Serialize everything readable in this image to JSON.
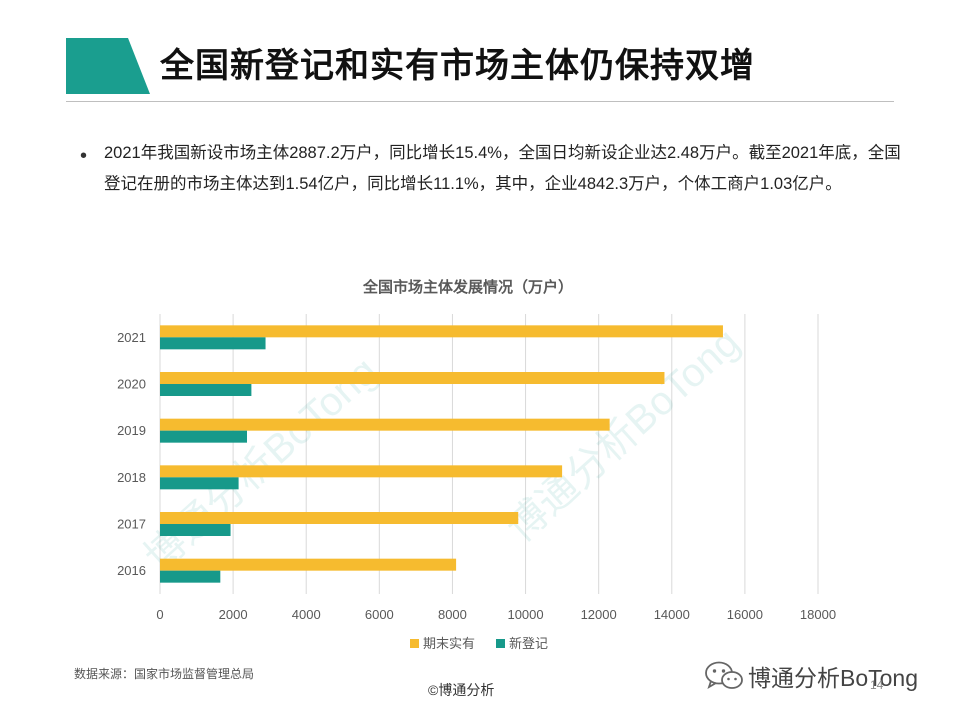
{
  "page": {
    "title": "全国新登记和实有市场主体仍保持双增",
    "bullet_marker": "•",
    "summary": "2021年我国新设市场主体2887.2万户，同比增长15.4%，全国日均新设企业达2.48万户。截至2021年底，全国登记在册的市场主体达到1.54亿户，同比增长11.1%，其中，企业4842.3万户，个体工商户1.03亿户。",
    "source": "数据来源：国家市场监督管理总局",
    "copyright": "©博通分析",
    "brand": "博通分析BoTong",
    "page_number": "14",
    "watermark": "博通分析BoTong"
  },
  "colors": {
    "accent_teal": "#1a9e8f",
    "bar_existing": "#f6bb2f",
    "bar_new": "#17998a",
    "grid": "#d9d9d9"
  },
  "chart_data": {
    "type": "bar",
    "orientation": "horizontal",
    "title": "全国市场主体发展情况（万户）",
    "categories": [
      "2021",
      "2020",
      "2019",
      "2018",
      "2017",
      "2016"
    ],
    "series": [
      {
        "name": "期末实有",
        "values": [
          15400,
          13800,
          12300,
          11000,
          9800,
          8100
        ]
      },
      {
        "name": "新登记",
        "values": [
          2887,
          2500,
          2380,
          2150,
          1930,
          1650
        ]
      }
    ],
    "xticks": [
      0,
      2000,
      4000,
      6000,
      8000,
      10000,
      12000,
      14000,
      16000,
      18000
    ],
    "xlim": [
      0,
      18000
    ],
    "legend": "bottom",
    "grid": true
  }
}
